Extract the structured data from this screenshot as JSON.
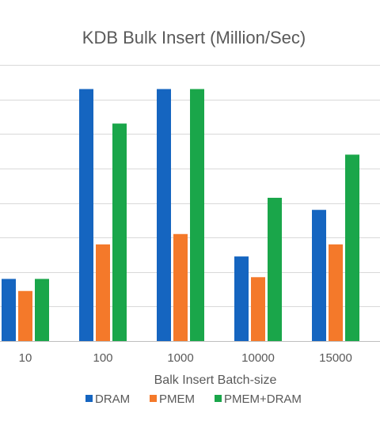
{
  "chart_data": {
    "type": "bar",
    "title": "KDB Bulk Insert (Million/Sec)",
    "xlabel": "Balk Insert Batch-size",
    "ylabel": "",
    "categories": [
      "10",
      "100",
      "1000",
      "10000",
      "15000"
    ],
    "series": [
      {
        "name": "DRAM",
        "color": "#1565C0",
        "values": [
          1.8,
          7.3,
          7.3,
          2.45,
          3.8
        ]
      },
      {
        "name": "PMEM",
        "color": "#F4792A",
        "values": [
          1.45,
          2.8,
          3.1,
          1.85,
          2.8
        ]
      },
      {
        "name": "PMEM+DRAM",
        "color": "#1AA64A",
        "values": [
          1.8,
          6.3,
          7.3,
          4.15,
          5.4
        ]
      }
    ],
    "ylim": [
      0,
      8
    ],
    "y_gridline_step": 1,
    "y_tick_labels_visible": false,
    "grid": true,
    "legend": "bottom"
  }
}
